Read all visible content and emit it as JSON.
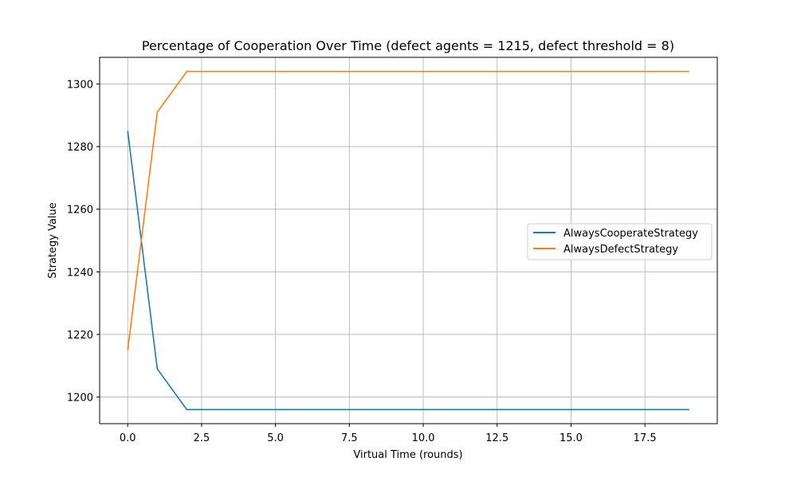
{
  "chart_data": {
    "type": "line",
    "title": "Percentage of Cooperation Over Time (defect agents = 1215, defect threshold = 8)",
    "xlabel": "Virtual Time (rounds)",
    "ylabel": "Strategy Value",
    "xlim": [
      -0.95,
      19.95
    ],
    "ylim": [
      1191.5,
      1308.5
    ],
    "xticks": [
      0,
      2.5,
      5,
      7.5,
      10,
      12.5,
      15,
      17.5
    ],
    "xtick_labels": [
      "0.0",
      "2.5",
      "5.0",
      "7.5",
      "10.0",
      "12.5",
      "15.0",
      "17.5"
    ],
    "yticks": [
      1200,
      1220,
      1240,
      1260,
      1280,
      1300
    ],
    "ytick_labels": [
      "1200",
      "1220",
      "1240",
      "1260",
      "1280",
      "1300"
    ],
    "grid": true,
    "legend_position": "center-right",
    "x": [
      0,
      1,
      2,
      3,
      4,
      5,
      6,
      7,
      8,
      9,
      10,
      11,
      12,
      13,
      14,
      15,
      16,
      17,
      18,
      19
    ],
    "series": [
      {
        "name": "AlwaysCooperateStrategy",
        "color": "#1f77b4",
        "values": [
          1285,
          1209,
          1196,
          1196,
          1196,
          1196,
          1196,
          1196,
          1196,
          1196,
          1196,
          1196,
          1196,
          1196,
          1196,
          1196,
          1196,
          1196,
          1196,
          1196
        ]
      },
      {
        "name": "AlwaysDefectStrategy",
        "color": "#ff7f0e",
        "values": [
          1215,
          1291,
          1304,
          1304,
          1304,
          1304,
          1304,
          1304,
          1304,
          1304,
          1304,
          1304,
          1304,
          1304,
          1304,
          1304,
          1304,
          1304,
          1304,
          1304
        ]
      }
    ]
  }
}
